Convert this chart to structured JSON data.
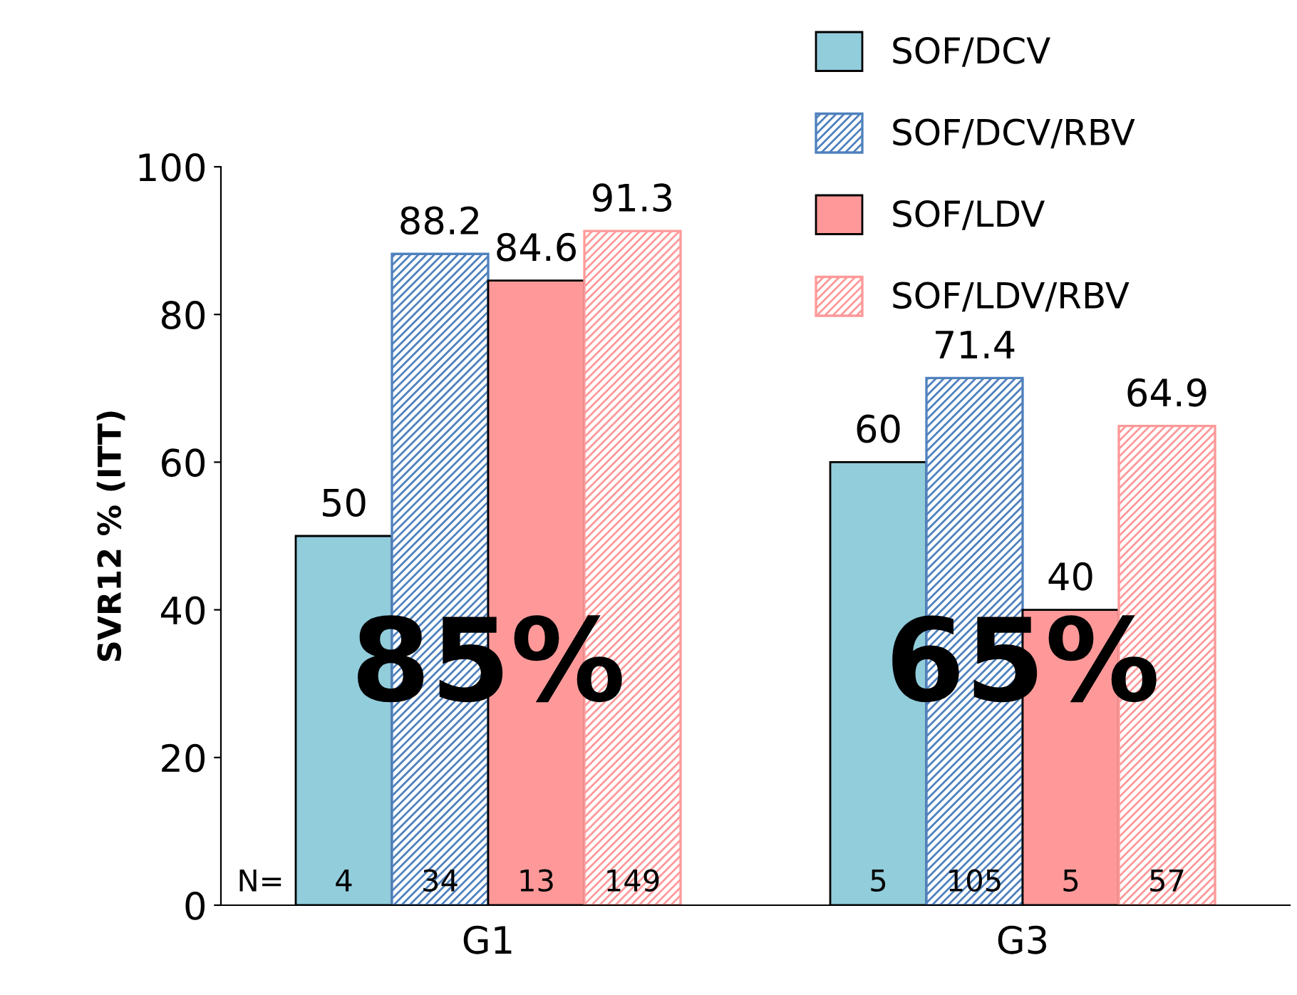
{
  "chart_data": {
    "type": "bar",
    "ylabel": "SVR12 % (ITT)",
    "categories": [
      "G1",
      "G3"
    ],
    "series": [
      {
        "name": "SOF/DCV",
        "color": "#92cddc",
        "values": [
          50,
          60
        ]
      },
      {
        "name": "SOF/DCV/RBV",
        "color": "#4f81bd",
        "values": [
          88.2,
          71.4
        ]
      },
      {
        "name": "SOF/LDV",
        "color": "#ff9999",
        "values": [
          84.6,
          40
        ]
      },
      {
        "name": "SOF/LDV/RBV",
        "color": "#ff9999",
        "values": [
          91.3,
          64.9
        ]
      }
    ],
    "ylim": [
      0,
      100
    ],
    "yticks": [
      0,
      20,
      40,
      60,
      80,
      100
    ],
    "grid": false,
    "legend": "top right",
    "data_labels": true,
    "annotations": [
      "N=",
      "85%",
      "65%",
      "4",
      "34",
      "13",
      "149",
      "5",
      "105",
      "5",
      "57"
    ]
  }
}
